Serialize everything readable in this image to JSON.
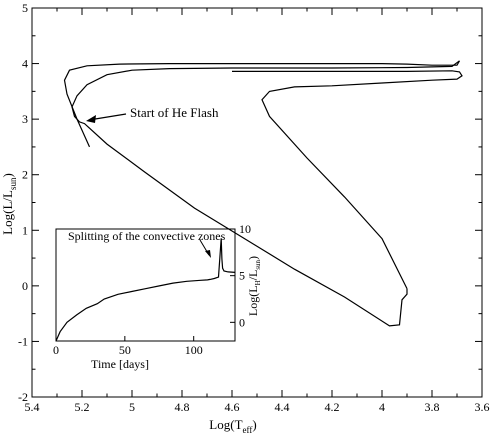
{
  "chart_data": [
    {
      "type": "line",
      "title": "",
      "xlabel": "Log(T_eff)",
      "ylabel": "Log(L/L_sun)",
      "xlim": [
        5.4,
        3.6
      ],
      "ylim": [
        -2,
        5
      ],
      "x_inverted": true,
      "xticks": [
        "5.4",
        "5.2",
        "5",
        "4.8",
        "4.6",
        "4.4",
        "4.2",
        "4",
        "3.8",
        "3.6"
      ],
      "yticks": [
        "-2",
        "-1",
        "0",
        "1",
        "2",
        "3",
        "4",
        "5"
      ],
      "grid": false,
      "series": [
        {
          "x": [
            5.17,
            5.22,
            5.26,
            5.27,
            5.25,
            5.18,
            5.05,
            4.85,
            4.6,
            4.4,
            4.2,
            4.0,
            3.9,
            3.8,
            3.7,
            3.69
          ],
          "y": [
            2.5,
            3.0,
            3.45,
            3.7,
            3.88,
            3.96,
            3.99,
            4.0,
            4.0,
            4.0,
            4.0,
            4.0,
            3.99,
            3.97,
            3.97,
            4.05
          ]
        },
        {
          "x": [
            3.69,
            3.72,
            3.9,
            4.2,
            4.6,
            4.85,
            5.0,
            5.1,
            5.18,
            5.22,
            5.24,
            5.23,
            5.21,
            5.19,
            5.1,
            4.95,
            4.75,
            4.55,
            4.35,
            4.15,
            3.97,
            3.93,
            3.92,
            3.9,
            3.9
          ],
          "y": [
            4.05,
            3.95,
            3.93,
            3.92,
            3.92,
            3.91,
            3.88,
            3.8,
            3.62,
            3.42,
            3.22,
            3.05,
            2.95,
            2.92,
            2.55,
            2.05,
            1.4,
            0.85,
            0.3,
            -0.2,
            -0.72,
            -0.7,
            -0.25,
            -0.15,
            -0.05
          ]
        },
        {
          "x": [
            3.9,
            4.0,
            4.15,
            4.3,
            4.45,
            4.48,
            4.45,
            4.35,
            4.2,
            4.0,
            3.8,
            3.7,
            3.68,
            3.69,
            3.72,
            3.9,
            4.2,
            4.4,
            4.6
          ],
          "y": [
            -0.05,
            0.85,
            1.6,
            2.3,
            3.05,
            3.35,
            3.5,
            3.58,
            3.6,
            3.65,
            3.7,
            3.72,
            3.78,
            3.85,
            3.87,
            3.86,
            3.86,
            3.86,
            3.86
          ]
        }
      ],
      "annotations": [
        {
          "text": "Start of He Flash",
          "arrow_to": [
            5.18,
            2.92
          ]
        }
      ]
    },
    {
      "type": "line",
      "title": "",
      "xlabel": "Time [days]",
      "ylabel": "Log(L_H/L_sun)",
      "xlim": [
        0,
        130
      ],
      "ylim": [
        -2,
        10
      ],
      "xticks": [
        "0",
        "50",
        "100"
      ],
      "yticks": [
        "0",
        "5",
        "10"
      ],
      "grid": false,
      "series": [
        {
          "x": [
            0,
            3,
            8,
            15,
            22,
            30,
            35,
            45,
            55,
            65,
            75,
            85,
            95,
            105,
            110,
            112,
            115,
            118,
            119,
            120,
            120.5,
            121,
            122,
            125,
            130
          ],
          "y": [
            -2,
            -1,
            0,
            0.8,
            1.5,
            2.0,
            2.5,
            3.0,
            3.3,
            3.6,
            3.9,
            4.2,
            4.4,
            4.5,
            4.55,
            4.6,
            4.7,
            4.85,
            7.0,
            9.0,
            6.8,
            5.8,
            5.5,
            5.4,
            5.35
          ]
        }
      ],
      "annotations": [
        {
          "text": "Splitting of the convective zones",
          "arrow_to": [
            118,
            4.85
          ]
        }
      ]
    }
  ],
  "labels": {
    "main_xlabel_base": "Log(T",
    "main_xlabel_sub": "eff",
    "main_xlabel_end": ")",
    "main_ylabel_base": "Log(L/L",
    "main_ylabel_sub": "sun",
    "main_ylabel_end": ")",
    "inset_xlabel": "Time [days]",
    "inset_ylabel_base": "Log(L",
    "inset_ylabel_sub1": "H",
    "inset_ylabel_mid": "/L",
    "inset_ylabel_sub2": "sun",
    "inset_ylabel_end": ")",
    "annotation_main": "Start of He Flash",
    "annotation_inset": "Splitting of the convective zones"
  }
}
